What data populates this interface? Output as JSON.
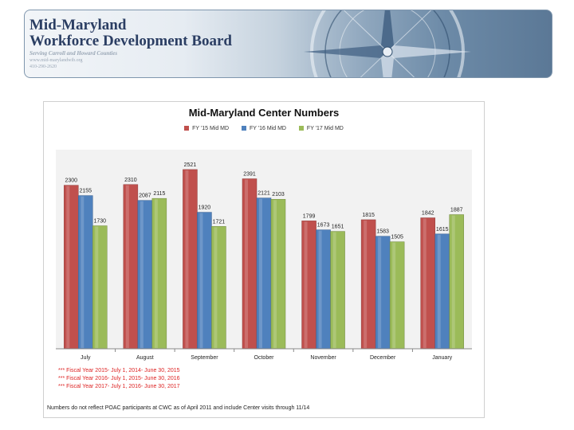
{
  "header": {
    "title_line1": "Mid-Maryland",
    "title_line2": "Workforce Development Board",
    "subtitle": "Serving Carroll and Howard Counties",
    "website": "www.mid-marylandwib.org",
    "phone": "410-290-2620"
  },
  "colors": {
    "fy15": "#c0504d",
    "fy16": "#4f81bd",
    "fy17": "#9bbb59"
  },
  "chart_data": {
    "type": "bar",
    "title": "Mid-Maryland Center Numbers",
    "categories": [
      "July",
      "August",
      "September",
      "October",
      "November",
      "December",
      "January"
    ],
    "series": [
      {
        "name": "FY '15 Mid MD",
        "values": [
          2300,
          2310,
          2521,
          2391,
          1799,
          1815,
          1842
        ]
      },
      {
        "name": "FY '16 Mid MD",
        "values": [
          2155,
          2087,
          1920,
          2121,
          1673,
          1583,
          1615
        ]
      },
      {
        "name": "FY '17 Mid MD",
        "values": [
          1730,
          2115,
          1721,
          2103,
          1651,
          1505,
          1887
        ]
      }
    ],
    "ylim": [
      0,
      2800
    ],
    "grid": false,
    "legend": "top-center",
    "notes": [
      "*** Fiscal Year 2015- July 1, 2014- June 30, 2015",
      "*** Fiscal Year 2016- July 1, 2015- June 30, 2016",
      "*** Fiscal Year 2017- July 1, 2016- June 30, 2017"
    ],
    "footnote": "Numbers do not reflect POAC participants at CWC as of April 2011 and include Center visits through 11/14"
  }
}
